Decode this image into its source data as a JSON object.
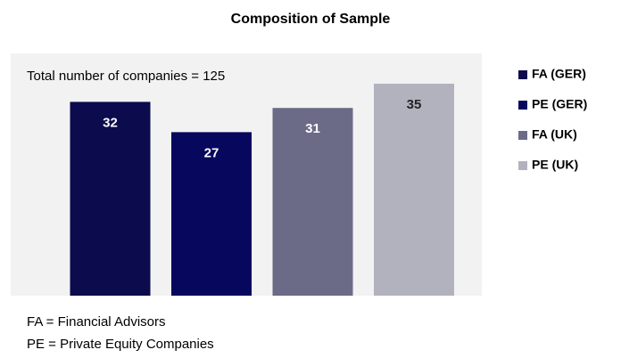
{
  "chart_data": {
    "type": "bar",
    "title": "Composition of Sample",
    "annotation": "Total number of companies = 125",
    "categories": [
      "FA (GER)",
      "PE (GER)",
      "FA (UK)",
      "PE (UK)"
    ],
    "values": [
      32,
      27,
      31,
      35
    ],
    "colors": [
      "#0b0b4d",
      "#07075e",
      "#6b6b88",
      "#b2b2bf"
    ],
    "ylim": [
      0,
      40
    ],
    "legend": "right",
    "notes": [
      "FA = Financial Advisors",
      "PE = Private Equity Companies"
    ]
  }
}
